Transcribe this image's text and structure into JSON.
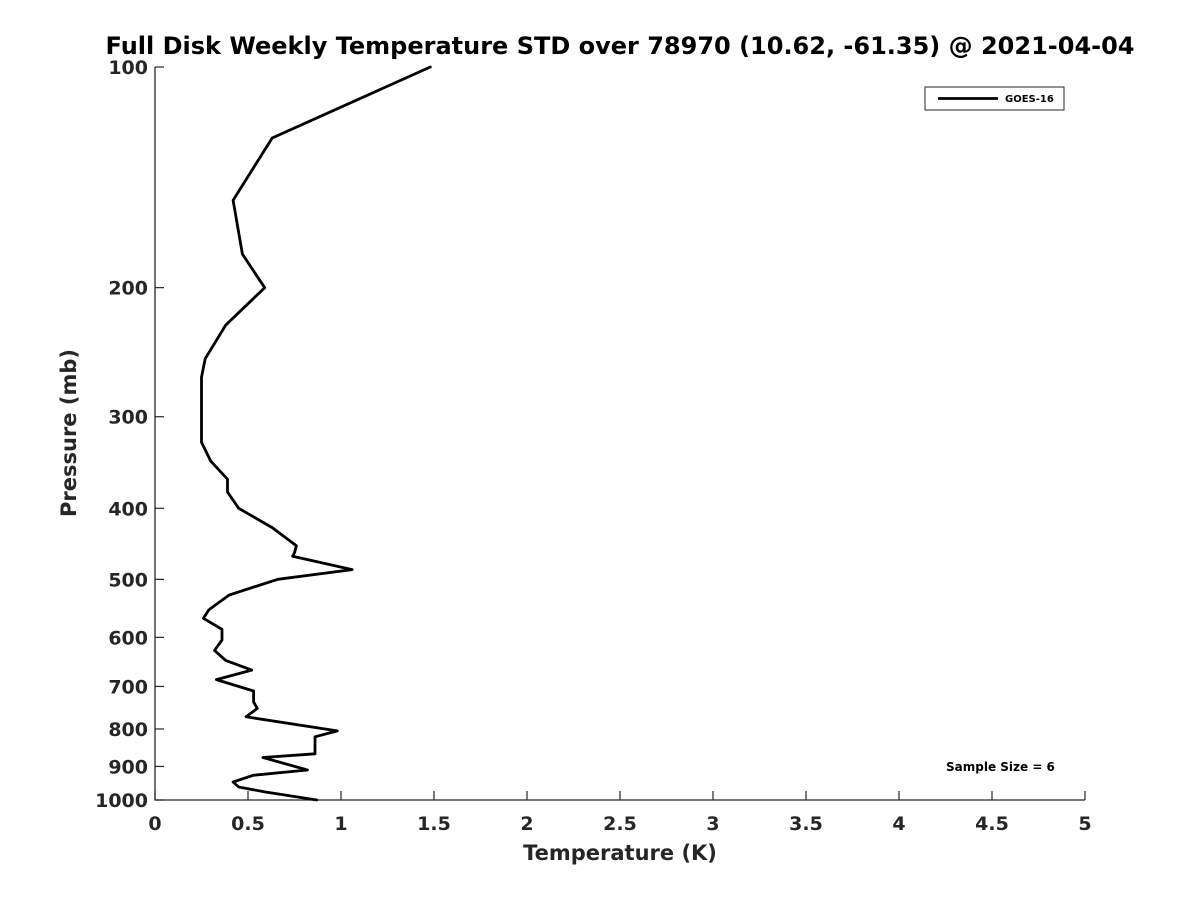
{
  "colors": {
    "background": "#ffffff",
    "axis": "#262626",
    "series": "#000000",
    "legend_border": "#262626"
  },
  "chart_data": {
    "type": "line",
    "title": "Full Disk Weekly Temperature STD over 78970 (10.62, -61.35) @ 2021-04-04",
    "xlabel": "Temperature (K)",
    "ylabel": "Pressure (mb)",
    "xlim": [
      0,
      5
    ],
    "ylim": [
      100,
      1000
    ],
    "y_scale": "log",
    "y_reversed": true,
    "x_ticks": [
      0,
      0.5,
      1,
      1.5,
      2,
      2.5,
      3,
      3.5,
      4,
      4.5,
      5
    ],
    "x_tick_labels": [
      "0",
      "0.5",
      "1",
      "1.5",
      "2",
      "2.5",
      "3",
      "3.5",
      "4",
      "4.5",
      "5"
    ],
    "y_ticks": [
      100,
      200,
      300,
      400,
      500,
      600,
      700,
      800,
      900,
      1000
    ],
    "y_tick_labels": [
      "100",
      "200",
      "300",
      "400",
      "500",
      "600",
      "700",
      "800",
      "900",
      "1000"
    ],
    "grid": false,
    "legend": {
      "position": "top-right",
      "entries": [
        "GOES-16"
      ]
    },
    "annotation": "Sample Size = 6",
    "series": [
      {
        "name": "GOES-16",
        "color": "#000000",
        "points": [
          [
            1.48,
            100
          ],
          [
            0.63,
            125
          ],
          [
            0.42,
            152
          ],
          [
            0.47,
            180
          ],
          [
            0.59,
            200
          ],
          [
            0.38,
            225
          ],
          [
            0.27,
            250
          ],
          [
            0.25,
            265
          ],
          [
            0.25,
            300
          ],
          [
            0.25,
            325
          ],
          [
            0.3,
            345
          ],
          [
            0.39,
            365
          ],
          [
            0.39,
            380
          ],
          [
            0.45,
            400
          ],
          [
            0.63,
            425
          ],
          [
            0.76,
            450
          ],
          [
            0.75,
            460
          ],
          [
            0.74,
            465
          ],
          [
            1.06,
            485
          ],
          [
            0.66,
            500
          ],
          [
            0.4,
            525
          ],
          [
            0.29,
            550
          ],
          [
            0.26,
            565
          ],
          [
            0.36,
            585
          ],
          [
            0.36,
            605
          ],
          [
            0.32,
            625
          ],
          [
            0.38,
            645
          ],
          [
            0.52,
            665
          ],
          [
            0.33,
            685
          ],
          [
            0.53,
            710
          ],
          [
            0.53,
            735
          ],
          [
            0.55,
            750
          ],
          [
            0.49,
            770
          ],
          [
            0.98,
            805
          ],
          [
            0.86,
            820
          ],
          [
            0.86,
            865
          ],
          [
            0.58,
            875
          ],
          [
            0.82,
            910
          ],
          [
            0.53,
            925
          ],
          [
            0.42,
            945
          ],
          [
            0.45,
            960
          ],
          [
            0.59,
            975
          ],
          [
            0.87,
            1000
          ]
        ]
      }
    ]
  }
}
